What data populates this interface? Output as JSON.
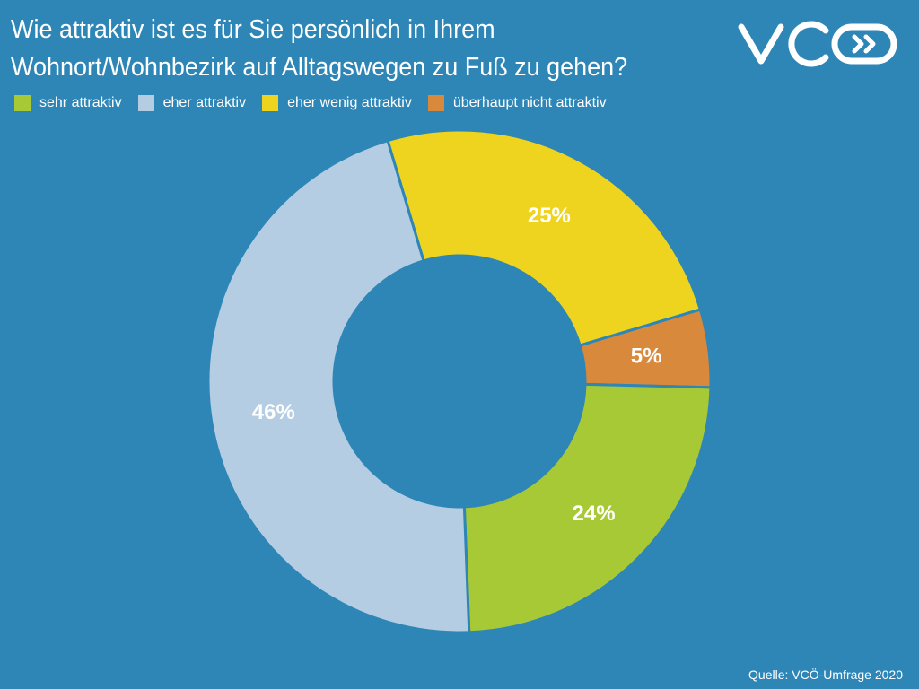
{
  "title": {
    "line1": "Wie attraktiv ist es für Sie persönlich in Ihrem",
    "line2": "Wohnort/Wohnbezirk auf Alltagswegen zu Fuß zu gehen?"
  },
  "logo": {
    "text": "VCÖ",
    "icon": "vco-logo-icon"
  },
  "source": "Quelle: VCÖ-Umfrage 2020",
  "colors": {
    "background": "#2e86b7",
    "divider": "#2e86b7",
    "label": "#ffffff"
  },
  "chart_data": {
    "type": "pie",
    "donut": true,
    "title": "Wie attraktiv ist es für Sie persönlich in Ihrem Wohnort/Wohnbezirk auf Alltagswegen zu Fuß zu gehen?",
    "legend_position": "top-left",
    "slice_order": [
      "eher wenig attraktiv",
      "überhaupt nicht attraktiv",
      "sehr attraktiv",
      "eher attraktiv"
    ],
    "categories": [
      "sehr attraktiv",
      "eher attraktiv",
      "eher wenig attraktiv",
      "überhaupt nicht attraktiv"
    ],
    "values": [
      24,
      46,
      25,
      5
    ],
    "labels": [
      "24%",
      "46%",
      "25%",
      "5%"
    ],
    "colors": [
      "#a8c936",
      "#b5cde3",
      "#efd41f",
      "#d9893b"
    ]
  }
}
